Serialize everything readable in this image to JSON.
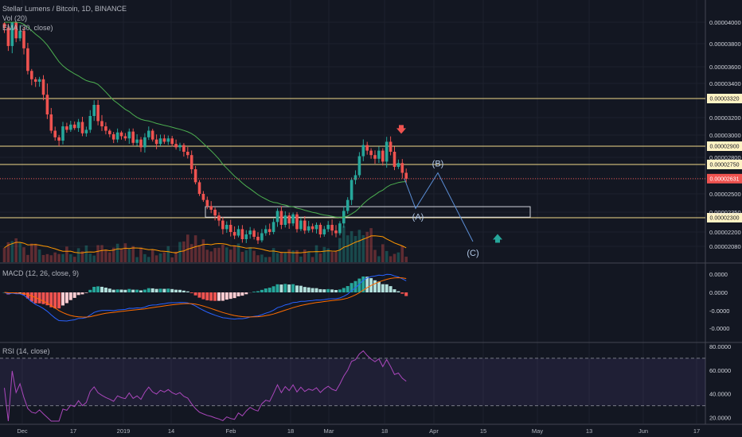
{
  "header": {
    "symbol": "Stellar Lumens / Bitcoin, 1D, BINANCE",
    "vol": "Vol (20)",
    "ema": "EMA (30, close)"
  },
  "panes": {
    "macd_title": "MACD (12, 26, close, 9)",
    "rsi_title": "RSI (14, close)"
  },
  "chart_data": [
    {
      "type": "candlestick",
      "title": "Stellar Lumens / Bitcoin, 1D, BINANCE",
      "x_labels": [
        "Dec",
        "17",
        "2019",
        "14",
        "Feb",
        "18",
        "Mar",
        "18",
        "Apr",
        "15",
        "May",
        "13",
        "Jun",
        "17"
      ],
      "price_ticks": [
        "0.00004000",
        "0.00003800",
        "0.00003600",
        "0.00003400",
        "0.00003200",
        "0.00003000",
        "0.00002800",
        "0.00002500",
        "0.00002350",
        "0.00002200",
        "0.00002080"
      ],
      "horizontal_levels": [
        {
          "value": 3.32e-05,
          "label": "0.00003320",
          "color": "#f0d98a"
        },
        {
          "value": 2.9e-05,
          "label": "0.00002900",
          "color": "#f0d98a"
        },
        {
          "value": 2.75e-05,
          "label": "0.00002750",
          "color": "#f0d98a"
        },
        {
          "value": 2.3e-05,
          "label": "0.00002300",
          "color": "#f0d98a"
        }
      ],
      "last_price": {
        "value": 2.631e-05,
        "label": "0.00002631",
        "color": "#ef5350"
      },
      "close_series": [
        3.95e-05,
        3.78e-05,
        4.01e-05,
        3.85e-05,
        3.92e-05,
        3.76e-05,
        3.55e-05,
        3.45e-05,
        3.42e-05,
        3.45e-05,
        3.34e-05,
        3.22e-05,
        3.05e-05,
        2.98e-05,
        2.95e-05,
        3.1e-05,
        3.06e-05,
        3.12e-05,
        3.08e-05,
        3.15e-05,
        3.02e-05,
        3.06e-05,
        3.21e-05,
        3.28e-05,
        3.16e-05,
        3.1e-05,
        3.05e-05,
        3.01e-05,
        2.96e-05,
        3.03e-05,
        2.99e-05,
        2.97e-05,
        3.04e-05,
        2.93e-05,
        2.96e-05,
        2.89e-05,
        2.98e-05,
        3.05e-05,
        2.96e-05,
        2.92e-05,
        2.97e-05,
        2.94e-05,
        2.97e-05,
        2.92e-05,
        2.89e-05,
        2.91e-05,
        2.85e-05,
        2.82e-05,
        2.71e-05,
        2.6e-05,
        2.5e-05,
        2.45e-05,
        2.4e-05,
        2.37e-05,
        2.32e-05,
        2.28e-05,
        2.22e-05,
        2.25e-05,
        2.2e-05,
        2.17e-05,
        2.22e-05,
        2.14e-05,
        2.18e-05,
        2.21e-05,
        2.16e-05,
        2.13e-05,
        2.19e-05,
        2.22e-05,
        2.2e-05,
        2.27e-05,
        2.36e-05,
        2.25e-05,
        2.32e-05,
        2.26e-05,
        2.33e-05,
        2.22e-05,
        2.28e-05,
        2.21e-05,
        2.24e-05,
        2.22e-05,
        2.25e-05,
        2.18e-05,
        2.22e-05,
        2.25e-05,
        2.21e-05,
        2.19e-05,
        2.26e-05,
        2.36e-05,
        2.45e-05,
        2.62e-05,
        2.66e-05,
        2.81e-05,
        2.91e-05,
        2.86e-05,
        2.82e-05,
        2.79e-05,
        2.86e-05,
        2.77e-05,
        2.94e-05,
        2.85e-05,
        2.73e-05,
        2.76e-05,
        2.68e-05,
        2.63e-05
      ],
      "ema_label": "EMA (30, close)",
      "elliott_wave": [
        {
          "label": "(A)",
          "value": 2.38e-05
        },
        {
          "label": "(B)",
          "value": 2.68e-05
        },
        {
          "label": "(C)",
          "value": 2.12e-05
        }
      ],
      "consolidation_box": {
        "from": 2.395e-05,
        "to": 2.305e-05
      },
      "arrows": [
        {
          "direction": "down",
          "color": "#ef5350",
          "value": 3.06e-05
        },
        {
          "direction": "up",
          "color": "#26a69a",
          "value": 2.15e-05
        }
      ],
      "volume_label": "Vol (20)"
    },
    {
      "type": "histogram_line",
      "title": "MACD (12, 26, close, 9)",
      "y_ticks": [
        "0.0000",
        "0.0000",
        "-0.0000",
        "-0.0000"
      ]
    },
    {
      "type": "line",
      "title": "RSI (14, close)",
      "y_ticks": [
        "80.0000",
        "60.0000",
        "40.0000",
        "20.0000"
      ],
      "bands": [
        70,
        30
      ],
      "ylim": [
        15,
        82
      ]
    }
  ]
}
